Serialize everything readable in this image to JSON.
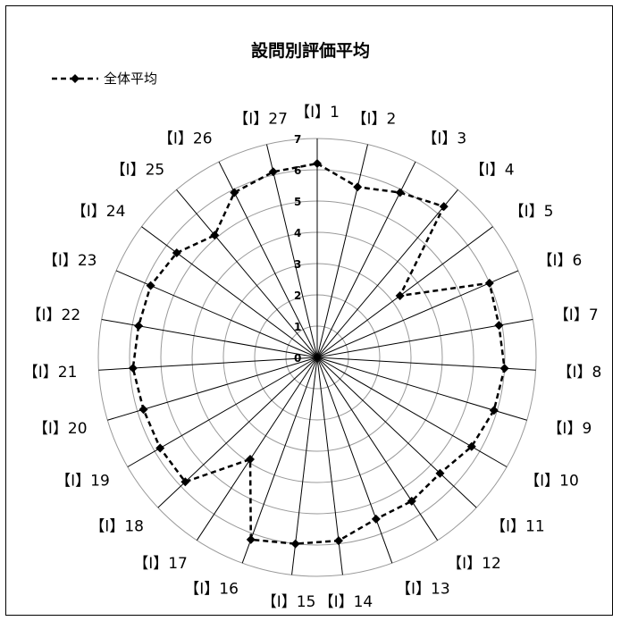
{
  "chart_data": {
    "type": "radar",
    "title": "設問別評価平均",
    "categories": [
      "【I】1",
      "【I】2",
      "【I】3",
      "【I】4",
      "【I】5",
      "【I】6",
      "【I】7",
      "【I】8",
      "【I】9",
      "【I】10",
      "【I】11",
      "【I】12",
      "【I】13",
      "【I】14",
      "【I】15",
      "【I】16",
      "【I】17",
      "【I】18",
      "【I】19",
      "【I】20",
      "【I】21",
      "【I】22",
      "【I】23",
      "【I】24",
      "【I】25",
      "【I】26",
      "【I】27"
    ],
    "series": [
      {
        "name": "全体平均",
        "values": [
          6.2,
          5.6,
          5.9,
          6.3,
          3.3,
          6.0,
          5.9,
          6.0,
          5.9,
          5.7,
          5.4,
          5.5,
          5.5,
          5.9,
          6.0,
          6.2,
          3.9,
          5.8,
          5.8,
          5.8,
          5.9,
          5.8,
          5.8,
          5.6,
          5.1,
          5.9,
          6.1
        ]
      }
    ],
    "rlim": [
      0,
      7
    ],
    "ticks": [
      0,
      1,
      2,
      3,
      4,
      5,
      6,
      7
    ],
    "grid": true,
    "legend": "top-left",
    "colors": {
      "line": "#000000",
      "grid": "#999999"
    }
  }
}
